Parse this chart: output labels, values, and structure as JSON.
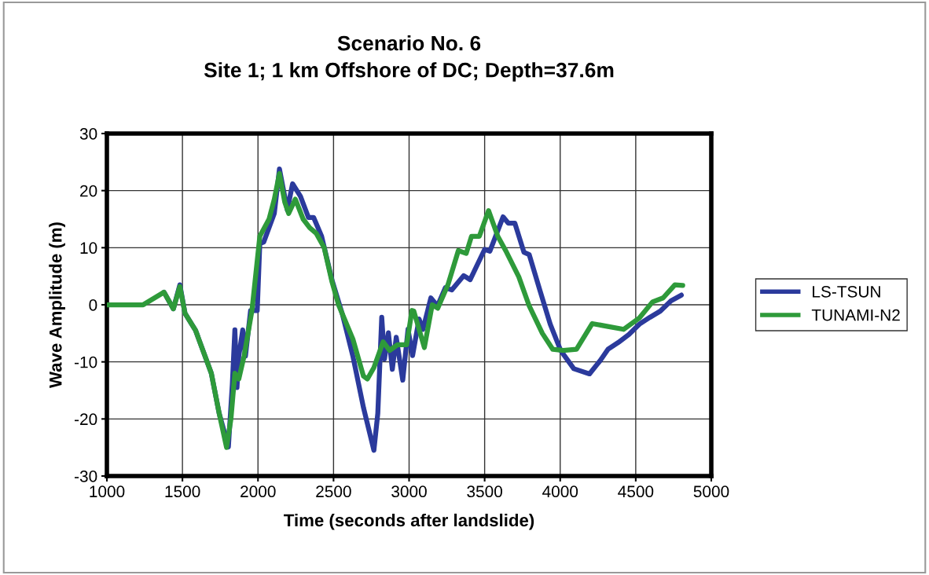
{
  "chart_data": {
    "type": "line",
    "title": "Scenario No. 6\nSite 1; 1 km Offshore of DC; Depth=37.6m",
    "xlabel": "Time (seconds after landslide)",
    "ylabel": "Wave Amplitude (m)",
    "xlim": [
      1000,
      5000
    ],
    "xticks": [
      1000,
      1500,
      2000,
      2500,
      3000,
      3500,
      4000,
      4500,
      5000
    ],
    "ylim": [
      -30,
      30
    ],
    "yticks": [
      -30,
      -20,
      -10,
      0,
      10,
      20,
      30
    ],
    "grid": true,
    "legend": "right",
    "marker": "none",
    "line_style": "solid",
    "series": [
      {
        "name": "LS-TSUN",
        "color": "#2b3a9c",
        "x": [
          1378,
          1440,
          1483,
          1517,
          1587,
          1691,
          1743,
          1804,
          1830,
          1847,
          1861,
          1873,
          1899,
          1917,
          1951,
          1995,
          2012,
          2038,
          2108,
          2142,
          2194,
          2229,
          2281,
          2334,
          2368,
          2421,
          2490,
          2559,
          2628,
          2698,
          2767,
          2793,
          2819,
          2837,
          2863,
          2889,
          2915,
          2958,
          2993,
          3023,
          3066,
          3092,
          3144,
          3188,
          3240,
          3283,
          3361,
          3404,
          3500,
          3535,
          3622,
          3656,
          3700,
          3760,
          3795,
          3865,
          3934,
          4003,
          4090,
          4194,
          4264,
          4316,
          4385,
          4455,
          4524,
          4594,
          4663,
          4733,
          4802
        ],
        "values": [
          2.2,
          -0.7,
          3.5,
          -1.5,
          -4.5,
          -12,
          -19,
          -24.9,
          -14,
          -4.4,
          -14.5,
          -9,
          -4.4,
          -9,
          -1,
          -1,
          10.7,
          11,
          16,
          23.8,
          16.6,
          21.2,
          19,
          15.3,
          15.3,
          12,
          4.3,
          -1.7,
          -9,
          -18,
          -25.5,
          -19,
          -2.2,
          -9.5,
          -4.9,
          -11.3,
          -5.7,
          -13.2,
          -4.3,
          -8.9,
          -2.5,
          -4.3,
          1.2,
          -0.2,
          3,
          2.6,
          5.1,
          4.4,
          9.7,
          9.4,
          15.4,
          14.3,
          14.3,
          9.2,
          8.8,
          2.6,
          -3.4,
          -8,
          -11.2,
          -12.1,
          -9.8,
          -7.8,
          -6.6,
          -5.2,
          -3.4,
          -2.2,
          -1.1,
          0.7,
          1.7
        ]
      },
      {
        "name": "TUNAMI-N2",
        "color": "#2e9a3a",
        "x": [
          1000,
          1240,
          1378,
          1440,
          1483,
          1517,
          1587,
          1691,
          1743,
          1792,
          1821,
          1847,
          1873,
          1908,
          1960,
          2012,
          2073,
          2108,
          2142,
          2177,
          2203,
          2247,
          2299,
          2342,
          2386,
          2438,
          2490,
          2533,
          2628,
          2698,
          2724,
          2767,
          2828,
          2871,
          2924,
          2984,
          3019,
          3031,
          3101,
          3153,
          3190,
          3257,
          3326,
          3378,
          3413,
          3465,
          3526,
          3587,
          3639,
          3726,
          3795,
          3882,
          3951,
          4021,
          4108,
          4212,
          4316,
          4420,
          4524,
          4611,
          4681,
          4759,
          4811
        ],
        "values": [
          0,
          0,
          2.2,
          -0.7,
          3.2,
          -1.5,
          -4.5,
          -12,
          -19,
          -25,
          -20,
          -12,
          -13,
          -9,
          -1,
          12,
          15,
          18.5,
          23,
          18,
          16,
          18.5,
          15,
          13.5,
          12.5,
          10,
          4,
          0,
          -6,
          -12.5,
          -13,
          -11,
          -6.5,
          -8,
          -7,
          -7,
          -1,
          -1.1,
          -7.5,
          0,
          -0.6,
          3.5,
          9.5,
          9,
          12,
          12,
          16.5,
          12,
          9.5,
          4.9,
          -0.2,
          -5,
          -7.8,
          -8,
          -7.8,
          -3.3,
          -3.8,
          -4.3,
          -2.3,
          0.5,
          1.2,
          3.5,
          3.4
        ]
      }
    ]
  }
}
